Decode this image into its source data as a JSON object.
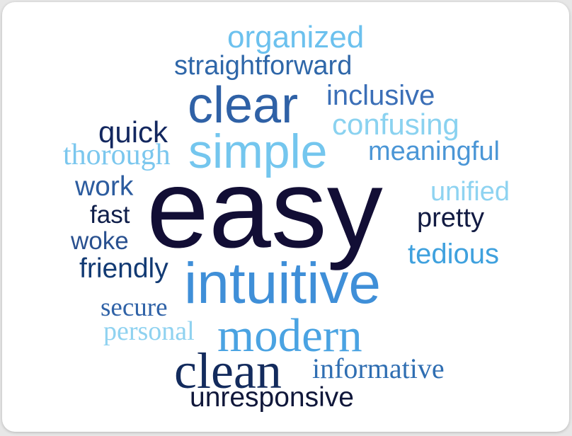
{
  "words": {
    "organized": {
      "text": "organized",
      "color": "#6cc1ee"
    },
    "straightforward": {
      "text": "straightforward",
      "color": "#2f67a9"
    },
    "clear": {
      "text": "clear",
      "color": "#2f61a6"
    },
    "inclusive": {
      "text": "inclusive",
      "color": "#3b6fb7"
    },
    "confusing": {
      "text": "confusing",
      "color": "#8ad2f0"
    },
    "quick": {
      "text": "quick",
      "color": "#13275f"
    },
    "simple": {
      "text": "simple",
      "color": "#74c6ee"
    },
    "thorough": {
      "text": "thorough",
      "color": "#7bc7ee"
    },
    "meaningful": {
      "text": "meaningful",
      "color": "#4b96d6"
    },
    "work": {
      "text": "work",
      "color": "#2c5c9f"
    },
    "easy": {
      "text": "easy",
      "color": "#120e35"
    },
    "unified": {
      "text": "unified",
      "color": "#8ed3f1"
    },
    "fast": {
      "text": "fast",
      "color": "#0f1e4a"
    },
    "pretty": {
      "text": "pretty",
      "color": "#121b42"
    },
    "woke": {
      "text": "woke",
      "color": "#29508f"
    },
    "tedious": {
      "text": "tedious",
      "color": "#3fa1de"
    },
    "friendly": {
      "text": "friendly",
      "color": "#123a73"
    },
    "intuitive": {
      "text": "intuitive",
      "color": "#3f8fd8"
    },
    "secure": {
      "text": "secure",
      "color": "#2f62a7"
    },
    "personal": {
      "text": "personal",
      "color": "#8fd2f0"
    },
    "modern": {
      "text": "modern",
      "color": "#4aa3e2"
    },
    "clean": {
      "text": "clean",
      "color": "#132b5d"
    },
    "informative": {
      "text": "informative",
      "color": "#2f6eb2"
    },
    "unresponsive": {
      "text": "unresponsive",
      "color": "#10173a"
    }
  }
}
